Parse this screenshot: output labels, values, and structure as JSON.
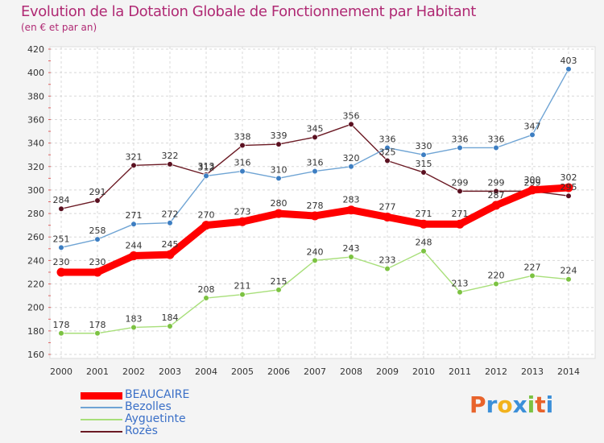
{
  "header": {
    "title": "Evolution de la Dotation Globale de Fonctionnement par Habitant",
    "subtitle": "(en € et par an)"
  },
  "logo": {
    "text": "Proxiti",
    "colors": [
      "#e8632b",
      "#3b8fd8",
      "#f2b21d",
      "#3b8fd8",
      "#7cc242",
      "#e8632b",
      "#3b8fd8"
    ]
  },
  "chart_data": {
    "type": "line",
    "title": "Evolution de la Dotation Globale de Fonctionnement par Habitant",
    "subtitle": "(en € et par an)",
    "x": [
      2000,
      2001,
      2002,
      2003,
      2004,
      2005,
      2006,
      2007,
      2008,
      2009,
      2010,
      2011,
      2012,
      2013,
      2014
    ],
    "ylim": [
      160,
      420
    ],
    "yticks": [
      160,
      180,
      200,
      220,
      240,
      260,
      280,
      300,
      320,
      340,
      360,
      380,
      400,
      420
    ],
    "grid": true,
    "legend": "bottom-left",
    "series": [
      {
        "name": "Rozès",
        "color": "#6b1a24",
        "point_color": "#5a1020",
        "values": [
          284,
          291,
          321,
          322,
          313,
          338,
          339,
          345,
          356,
          325,
          315,
          299,
          299,
          299,
          295
        ]
      },
      {
        "name": "Bezolles",
        "color": "#6fa4d4",
        "point_color": "#3d7ec2",
        "values": [
          251,
          258,
          271,
          272,
          312,
          316,
          310,
          316,
          320,
          336,
          330,
          336,
          336,
          347,
          403
        ]
      },
      {
        "name": "Ayguetinte",
        "color": "#a8df7a",
        "point_color": "#7cc242",
        "values": [
          178,
          178,
          183,
          184,
          208,
          211,
          215,
          240,
          243,
          233,
          248,
          213,
          220,
          227,
          224
        ]
      },
      {
        "name": "BEAUCAIRE",
        "color": "#ff0000",
        "point_color": "#ff0000",
        "values": [
          230,
          230,
          244,
          245,
          270,
          273,
          280,
          278,
          283,
          277,
          271,
          271,
          287,
          300,
          302
        ]
      }
    ]
  }
}
